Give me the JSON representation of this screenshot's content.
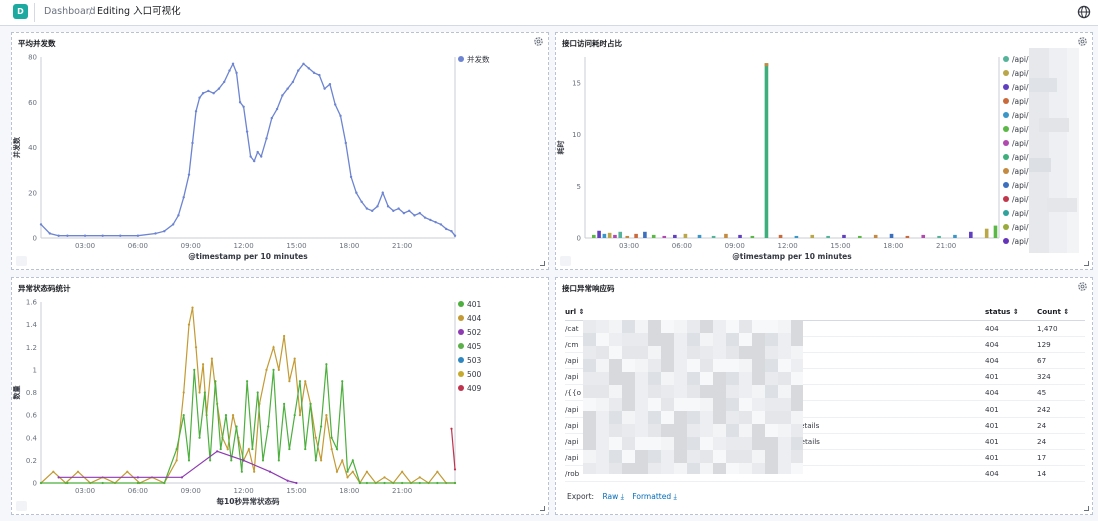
{
  "header": {
    "logo_letter": "D",
    "breadcrumb_root": "Dashboard",
    "breadcrumb_current": "Editing 入口可视化"
  },
  "panels": {
    "avg_concurrency": {
      "title": "平均并发数",
      "legend": [
        {
          "label": "并发数",
          "color": "#6c84d2"
        }
      ]
    },
    "latency_share": {
      "title": "接口访问耗时占比",
      "legend": [
        {
          "label": "/api/",
          "color": "#54b399"
        },
        {
          "label": "/api/",
          "color": "#b9a74a"
        },
        {
          "label": "/api/",
          "color": "#6040c0"
        },
        {
          "label": "/api/",
          "color": "#ca6a3c"
        },
        {
          "label": "/api/",
          "color": "#3a96c7"
        },
        {
          "label": "/api/",
          "color": "#5cb846"
        },
        {
          "label": "/api/",
          "color": "#b14aae"
        },
        {
          "label": "/api/",
          "color": "#3fae7d"
        },
        {
          "label": "/api/",
          "color": "#c48a42"
        },
        {
          "label": "/api/",
          "color": "#3c6fbd"
        },
        {
          "label": "/api/",
          "color": "#c0374b"
        },
        {
          "label": "/api/",
          "color": "#2fa39b"
        },
        {
          "label": "/api/",
          "color": "#9aab3b"
        },
        {
          "label": "/api/",
          "color": "#6535b9"
        }
      ]
    },
    "status_codes": {
      "title": "异常状态码统计",
      "legend": [
        {
          "label": "401",
          "color": "#4caf3e"
        },
        {
          "label": "404",
          "color": "#c39a34"
        },
        {
          "label": "502",
          "color": "#8e3ab2"
        },
        {
          "label": "405",
          "color": "#5bb04a"
        },
        {
          "label": "503",
          "color": "#2f87c2"
        },
        {
          "label": "500",
          "color": "#c6aa2c"
        },
        {
          "label": "409",
          "color": "#c0334f"
        }
      ]
    },
    "error_table": {
      "title": "接口异常响应码",
      "columns": [
        "url",
        "status",
        "Count"
      ],
      "rows": [
        {
          "url": "/cat",
          "status": "404",
          "count": "1,470"
        },
        {
          "url": "/cm",
          "status": "404",
          "count": "129"
        },
        {
          "url": "/api",
          "status": "404",
          "count": "67"
        },
        {
          "url": "/api",
          "status": "401",
          "count": "324"
        },
        {
          "url": "/{{o",
          "status": "404",
          "count": "45"
        },
        {
          "url": "/api",
          "status": "401",
          "count": "242"
        },
        {
          "url": "/api",
          "url_tail": "/details",
          "status": "401",
          "count": "24"
        },
        {
          "url": "/api",
          "url_tail": "d/details",
          "status": "401",
          "count": "24"
        },
        {
          "url": "/api",
          "status": "401",
          "count": "17"
        },
        {
          "url": "/rob",
          "status": "404",
          "count": "14"
        }
      ],
      "export_label": "Export:",
      "export_raw": "Raw",
      "export_formatted": "Formatted"
    }
  },
  "chart_data": [
    {
      "type": "line",
      "title": "平均并发数",
      "xlabel": "@timestamp per 10 minutes",
      "ylabel": "并发数",
      "ylim": [
        0,
        80
      ],
      "yticks": [
        0,
        20,
        40,
        60,
        80
      ],
      "xticks": [
        "03:00",
        "06:00",
        "09:00",
        "12:00",
        "15:00",
        "18:00",
        "21:00"
      ],
      "x_hours_range": [
        0.5,
        24.0
      ],
      "series": [
        {
          "name": "并发数",
          "x": [
            0.5,
            1.0,
            1.5,
            2.0,
            3.0,
            4.0,
            5.0,
            6.0,
            7.0,
            7.5,
            8.0,
            8.3,
            8.6,
            8.9,
            9.1,
            9.3,
            9.5,
            9.7,
            10.0,
            10.3,
            10.6,
            10.9,
            11.2,
            11.4,
            11.6,
            11.8,
            12.0,
            12.2,
            12.4,
            12.6,
            12.8,
            13.0,
            13.3,
            13.6,
            13.9,
            14.2,
            14.5,
            14.8,
            15.1,
            15.4,
            15.7,
            16.0,
            16.3,
            16.6,
            16.9,
            17.2,
            17.5,
            17.8,
            18.1,
            18.4,
            18.7,
            19.0,
            19.3,
            19.6,
            19.9,
            20.2,
            20.5,
            20.8,
            21.1,
            21.4,
            21.7,
            22.0,
            22.3,
            22.6,
            22.9,
            23.2,
            23.5,
            23.8,
            24.0
          ],
          "values": [
            6,
            2,
            1,
            1,
            1,
            1,
            1,
            1,
            2,
            3,
            6,
            10,
            18,
            28,
            42,
            56,
            62,
            64,
            65,
            64,
            66,
            69,
            74,
            77,
            73,
            60,
            58,
            47,
            36,
            34,
            38,
            36,
            44,
            53,
            57,
            63,
            66,
            69,
            74,
            77,
            75,
            73,
            72,
            66,
            68,
            59,
            54,
            42,
            27,
            20,
            16,
            13,
            12,
            14,
            20,
            14,
            12,
            13,
            11,
            12,
            10,
            11,
            9,
            8,
            7,
            6,
            4,
            3,
            1
          ]
        }
      ]
    },
    {
      "type": "bar",
      "title": "接口访问耗时占比",
      "xlabel": "@timestamp per 10 minutes",
      "ylabel": "耗时",
      "ylim": [
        0,
        17.5
      ],
      "yticks": [
        0,
        5,
        10,
        15
      ],
      "xticks": [
        "03:00",
        "06:00",
        "09:00",
        "12:00",
        "15:00",
        "18:00",
        "21:00"
      ],
      "x_hours_range": [
        0.5,
        24.0
      ],
      "bars": [
        {
          "x": 1.0,
          "value": 0.3,
          "color": "#5cb846"
        },
        {
          "x": 1.3,
          "value": 0.7,
          "color": "#6040c0"
        },
        {
          "x": 1.6,
          "value": 0.4,
          "color": "#3a96c7"
        },
        {
          "x": 1.9,
          "value": 0.5,
          "color": "#b9a74a"
        },
        {
          "x": 2.2,
          "value": 0.3,
          "color": "#b14aae"
        },
        {
          "x": 2.5,
          "value": 0.6,
          "color": "#54b399"
        },
        {
          "x": 2.9,
          "value": 0.2,
          "color": "#c48a42"
        },
        {
          "x": 3.4,
          "value": 0.4,
          "color": "#ca6a3c"
        },
        {
          "x": 3.9,
          "value": 0.6,
          "color": "#3c6fbd"
        },
        {
          "x": 4.4,
          "value": 0.3,
          "color": "#5cb846"
        },
        {
          "x": 5.0,
          "value": 0.2,
          "color": "#b14aae"
        },
        {
          "x": 5.6,
          "value": 0.3,
          "color": "#6040c0"
        },
        {
          "x": 6.2,
          "value": 0.4,
          "color": "#b9a74a"
        },
        {
          "x": 7.0,
          "value": 0.3,
          "color": "#3a96c7"
        },
        {
          "x": 7.8,
          "value": 0.2,
          "color": "#54b399"
        },
        {
          "x": 8.5,
          "value": 0.4,
          "color": "#c48a42"
        },
        {
          "x": 9.3,
          "value": 0.3,
          "color": "#6040c0"
        },
        {
          "x": 10.0,
          "value": 0.2,
          "color": "#5cb846"
        },
        {
          "x": 10.8,
          "value": 16.9,
          "color": "#3fae7d"
        },
        {
          "x": 11.6,
          "value": 0.3,
          "color": "#ca6a3c"
        },
        {
          "x": 12.5,
          "value": 0.2,
          "color": "#3a96c7"
        },
        {
          "x": 13.4,
          "value": 0.3,
          "color": "#b9a74a"
        },
        {
          "x": 14.3,
          "value": 0.2,
          "color": "#54b399"
        },
        {
          "x": 15.2,
          "value": 0.3,
          "color": "#6040c0"
        },
        {
          "x": 16.1,
          "value": 0.2,
          "color": "#5cb846"
        },
        {
          "x": 17.0,
          "value": 0.3,
          "color": "#c48a42"
        },
        {
          "x": 17.9,
          "value": 0.4,
          "color": "#3c6fbd"
        },
        {
          "x": 18.8,
          "value": 0.2,
          "color": "#ca6a3c"
        },
        {
          "x": 19.7,
          "value": 0.3,
          "color": "#b14aae"
        },
        {
          "x": 20.6,
          "value": 0.2,
          "color": "#54b399"
        },
        {
          "x": 21.5,
          "value": 0.3,
          "color": "#3a96c7"
        },
        {
          "x": 22.4,
          "value": 0.6,
          "color": "#6040c0"
        },
        {
          "x": 23.3,
          "value": 0.9,
          "color": "#b9a74a"
        },
        {
          "x": 23.8,
          "value": 1.2,
          "color": "#5cb846"
        }
      ]
    },
    {
      "type": "line",
      "title": "异常状态码统计",
      "xlabel": "每10秒异常状态码",
      "ylabel": "数量",
      "ylim": [
        0,
        1.6
      ],
      "yticks": [
        0,
        0.2,
        0.4,
        0.6,
        0.8,
        1,
        1.2,
        1.4,
        1.6
      ],
      "xticks": [
        "03:00",
        "06:00",
        "09:00",
        "12:00",
        "15:00",
        "18:00",
        "21:00"
      ],
      "x_hours_range": [
        0.5,
        24.0
      ],
      "series": [
        {
          "name": "404",
          "x": [
            0.5,
            1.2,
            1.9,
            2.6,
            3.3,
            4.0,
            4.7,
            5.4,
            6.1,
            6.8,
            7.5,
            8.2,
            8.6,
            8.9,
            9.1,
            9.3,
            9.5,
            9.7,
            9.9,
            10.2,
            10.5,
            10.8,
            11.1,
            11.4,
            11.7,
            12.0,
            12.3,
            12.6,
            12.9,
            13.3,
            13.7,
            14.0,
            14.3,
            14.6,
            14.9,
            15.2,
            15.5,
            15.8,
            16.1,
            16.4,
            16.7,
            17.0,
            17.3,
            17.6,
            17.9,
            18.2,
            18.6,
            19.0,
            19.5,
            20.0,
            20.5,
            21.0,
            21.5,
            22.0,
            22.5,
            23.0,
            23.5,
            24.0
          ],
          "values": [
            0,
            0.1,
            0,
            0.1,
            0,
            0.05,
            0,
            0.1,
            0,
            0.05,
            0,
            0.2,
            0.8,
            1.4,
            1.55,
            1.2,
            0.8,
            1.05,
            0.6,
            1.1,
            0.7,
            0.4,
            0.3,
            0.6,
            0.4,
            0.2,
            0.3,
            0.1,
            0.7,
            1.0,
            1.2,
            1.0,
            1.3,
            0.9,
            1.1,
            0.6,
            0.9,
            0.7,
            0.4,
            0.2,
            0.6,
            0.3,
            0.1,
            0.2,
            0.05,
            0.1,
            0,
            0.1,
            0,
            0.05,
            0,
            0.1,
            0,
            0.05,
            0,
            0.1,
            0,
            0
          ]
        },
        {
          "name": "401",
          "x": [
            0.5,
            2.0,
            4.0,
            6.0,
            7.5,
            8.2,
            8.6,
            8.9,
            9.2,
            9.5,
            9.8,
            10.1,
            10.4,
            10.7,
            11.0,
            11.3,
            11.6,
            11.9,
            12.2,
            12.5,
            12.8,
            13.1,
            13.4,
            13.7,
            14.0,
            14.3,
            14.6,
            14.9,
            15.2,
            15.5,
            15.8,
            16.1,
            16.4,
            16.7,
            17.0,
            17.3,
            17.6,
            17.9,
            18.2,
            18.6,
            19.0,
            20.0,
            21.0,
            22.0,
            23.0,
            24.0
          ],
          "values": [
            0,
            0,
            0,
            0,
            0,
            0.3,
            0.6,
            0.2,
            1.0,
            0.4,
            0.8,
            0.2,
            0.9,
            0.3,
            0.6,
            0.2,
            0.5,
            0.1,
            0.9,
            0.3,
            0.8,
            0.2,
            0.5,
            1.0,
            0.2,
            0.7,
            0.3,
            0.6,
            0.9,
            0.3,
            0.7,
            0.2,
            0.5,
            1.05,
            0.4,
            0.3,
            0.9,
            0.1,
            0.2,
            0,
            0,
            0,
            0,
            0,
            0,
            0
          ]
        },
        {
          "name": "502",
          "x": [
            1.5,
            6.0,
            8.5,
            10.5,
            12.0,
            13.5,
            14.5,
            15.0
          ],
          "values": [
            0.05,
            0.05,
            0.05,
            0.28,
            0.2,
            0.1,
            0.02,
            0
          ]
        },
        {
          "name": "409",
          "x": [
            23.8,
            24.0
          ],
          "values": [
            0.48,
            0.12
          ]
        }
      ]
    }
  ]
}
